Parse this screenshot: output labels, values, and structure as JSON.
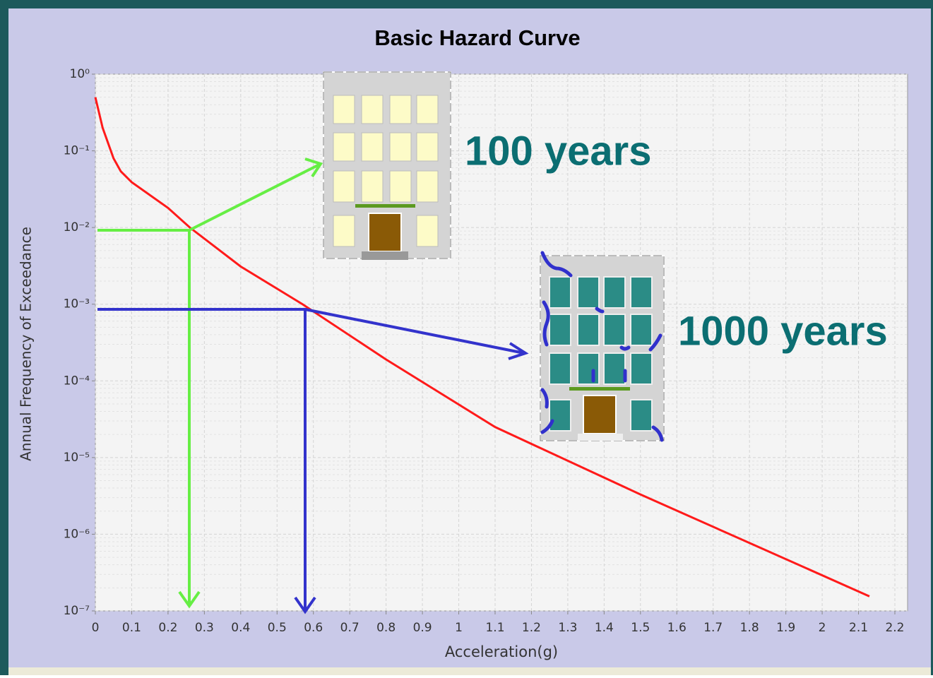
{
  "chart_data": {
    "type": "line",
    "title": "Basic Hazard Curve",
    "x_label": "Acceleration(g)",
    "y_label": "Annual Frequency of Exceedance",
    "log_y": true,
    "grid": true,
    "xlim": [
      0,
      2.235
    ],
    "ylim": [
      1e-07,
      1
    ],
    "xticks": [
      0,
      0.1,
      0.2,
      0.3,
      0.4,
      0.5,
      0.6,
      0.7,
      0.8,
      0.9,
      1,
      1.1,
      1.2,
      1.3,
      1.4,
      1.5,
      1.6,
      1.7,
      1.8,
      1.9,
      2,
      2.1,
      2.2
    ],
    "yticks": [
      {
        "value": 1,
        "label": "10⁰"
      },
      {
        "value": 0.1,
        "label": "10⁻¹"
      },
      {
        "value": 0.01,
        "label": "10⁻²"
      },
      {
        "value": 0.001,
        "label": "10⁻³"
      },
      {
        "value": 0.0001,
        "label": "10⁻⁴"
      },
      {
        "value": 1e-05,
        "label": "10⁻⁵"
      },
      {
        "value": 1e-06,
        "label": "10⁻⁶"
      },
      {
        "value": 1e-07,
        "label": "10⁻⁷"
      }
    ],
    "series": [
      {
        "color": "#ff1a1a",
        "x": [
          0,
          0.02,
          0.05,
          0.07,
          0.1,
          0.2,
          0.26,
          0.4,
          0.57,
          0.8,
          1.1,
          1.5,
          2.13
        ],
        "values": [
          0.5,
          0.2,
          0.08,
          0.054,
          0.039,
          0.018,
          0.01,
          0.0031,
          0.001,
          0.00019,
          2.5e-05,
          3.3e-06,
          1.55e-07
        ]
      }
    ],
    "annotations": [
      "100 years",
      "1000 years"
    ]
  }
}
